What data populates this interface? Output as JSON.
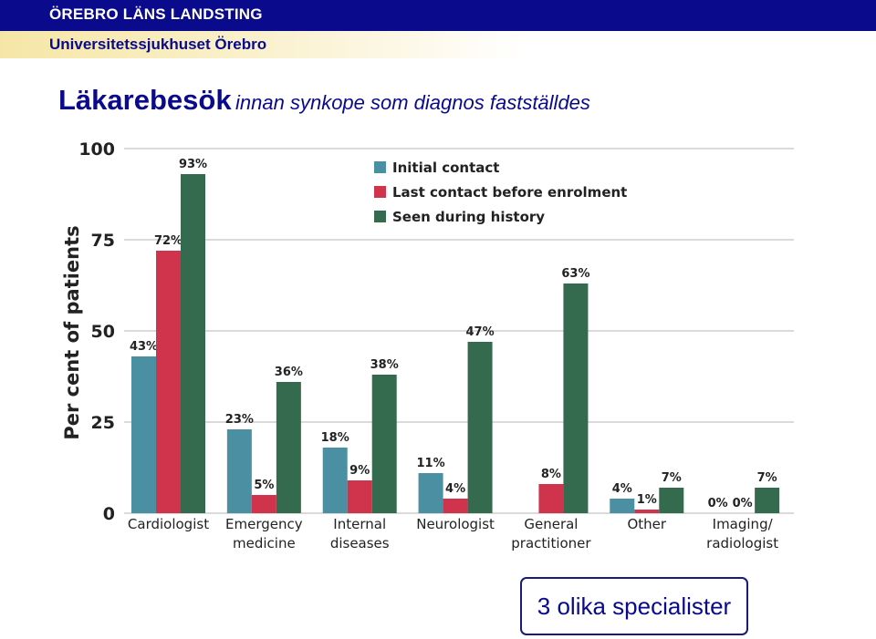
{
  "header": {
    "organization": "ÖREBRO LÄNS LANDSTING",
    "hospital": "Universitetssjukhuset Örebro"
  },
  "slide": {
    "title_main": "Läkarebesök",
    "title_sub": "innan synkope som diagnos fastställdes",
    "callout": "3 olika specialister"
  },
  "colors": {
    "header_bar": "#0a0a8c",
    "initial_contact": "#4b8fa3",
    "last_contact": "#cf344c",
    "seen_during_history": "#346a4e"
  },
  "chart_data": {
    "type": "bar",
    "ylabel": "Per cent of patients",
    "ylim": [
      0,
      100
    ],
    "yticks": [
      0,
      25,
      50,
      75,
      100
    ],
    "grid": true,
    "legend_position": "top-center",
    "categories": [
      "Cardiologist",
      "Emergency\nmedicine",
      "Internal\ndiseases",
      "Neurologist",
      "General\npractitioner",
      "Other",
      "Imaging/\nradiologist"
    ],
    "series": [
      {
        "name": "Initial contact",
        "values": [
          43,
          23,
          18,
          11,
          null,
          4,
          0
        ],
        "labels": [
          "43%",
          "23%",
          "18%",
          "11%",
          "",
          "4%",
          "0%"
        ]
      },
      {
        "name": "Last contact before enrolment",
        "values": [
          72,
          5,
          9,
          4,
          8,
          1,
          0
        ],
        "labels": [
          "72%",
          "5%",
          "9%",
          "4%",
          "8%",
          "1%",
          "0%"
        ]
      },
      {
        "name": "Seen during history",
        "values": [
          93,
          36,
          38,
          47,
          63,
          7,
          7
        ],
        "labels": [
          "93%",
          "36%",
          "38%",
          "47%",
          "63%",
          "7%",
          "7%"
        ]
      }
    ]
  }
}
